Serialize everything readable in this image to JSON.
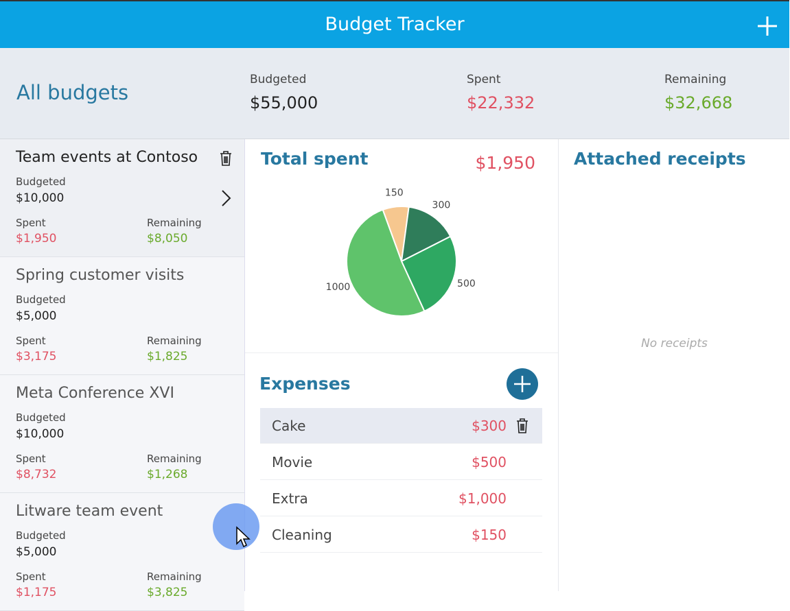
{
  "header": {
    "title": "Budget Tracker"
  },
  "summary": {
    "title": "All budgets",
    "stats": [
      {
        "label": "Budgeted",
        "value": "$55,000"
      },
      {
        "label": "Spent",
        "value": "$22,332"
      },
      {
        "label": "Remaining",
        "value": "$32,668"
      }
    ]
  },
  "budgets": [
    {
      "name": "Team events at Contoso",
      "budgeted_label": "Budgeted",
      "budgeted": "$10,000",
      "spent_label": "Spent",
      "spent": "$1,950",
      "remaining_label": "Remaining",
      "remaining": "$8,050"
    },
    {
      "name": "Spring customer visits",
      "budgeted_label": "Budgeted",
      "budgeted": "$5,000",
      "spent_label": "Spent",
      "spent": "$3,175",
      "remaining_label": "Remaining",
      "remaining": "$1,825"
    },
    {
      "name": "Meta Conference XVI",
      "budgeted_label": "Budgeted",
      "budgeted": "$10,000",
      "spent_label": "Spent",
      "spent": "$8,732",
      "remaining_label": "Remaining",
      "remaining": "$1,268"
    },
    {
      "name": "Litware team event",
      "budgeted_label": "Budgeted",
      "budgeted": "$5,000",
      "spent_label": "Spent",
      "spent": "$1,175",
      "remaining_label": "Remaining",
      "remaining": "$3,825"
    }
  ],
  "total_spent": {
    "title": "Total spent",
    "amount": "$1,950"
  },
  "chart_data": {
    "type": "pie",
    "values": [
      150,
      300,
      500,
      1000
    ],
    "colors": [
      "#f6c78f",
      "#2f7d5a",
      "#2ea862",
      "#5fc36b"
    ]
  },
  "expenses": {
    "title": "Expenses",
    "items": [
      {
        "name": "Cake",
        "amount": "$300"
      },
      {
        "name": "Movie",
        "amount": "$500"
      },
      {
        "name": "Extra",
        "amount": "$1,000"
      },
      {
        "name": "Cleaning",
        "amount": "$150"
      }
    ]
  },
  "receipts": {
    "title": "Attached receipts",
    "empty": "No receipts"
  }
}
